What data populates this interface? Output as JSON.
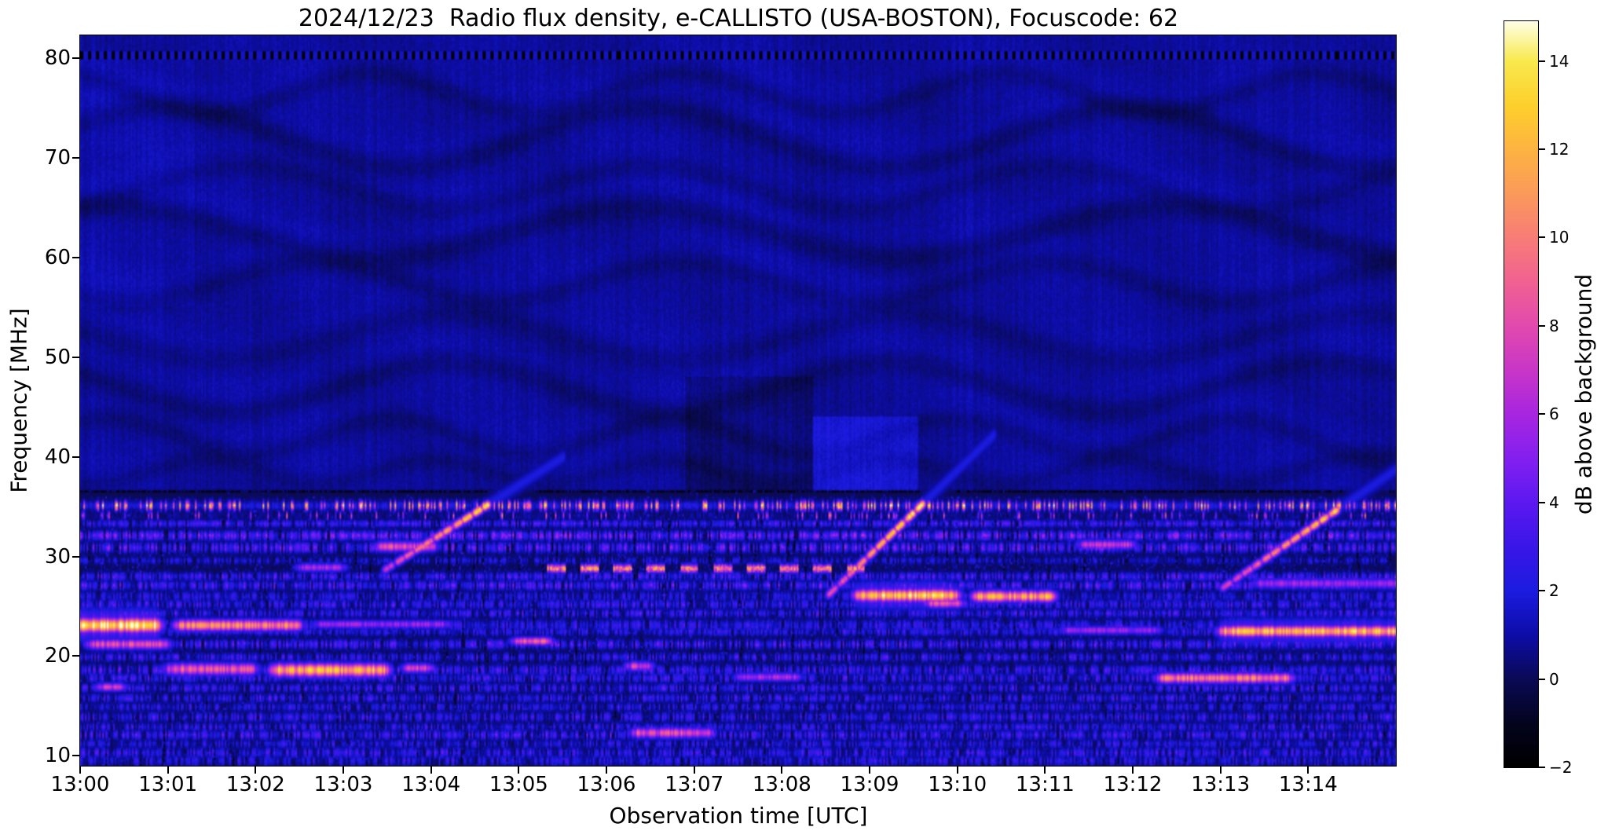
{
  "figure": {
    "title": "2024/12/23  Radio flux density, e-CALLISTO (USA-BOSTON), Focuscode: 62",
    "xlabel": "Observation time [UTC]",
    "ylabel": "Frequency [MHz]",
    "colorbar_label": "dB above background"
  },
  "chart_data": {
    "type": "heatmap",
    "title": "2024/12/23  Radio flux density, e-CALLISTO (USA-BOSTON), Focuscode: 62",
    "xlabel": "Observation time [UTC]",
    "ylabel": "Frequency [MHz]",
    "meta": {
      "date": "2024/12/23",
      "instrument": "e-CALLISTO",
      "station": "USA-BOSTON",
      "focuscode": "62"
    },
    "x_tick_minutes": [
      0,
      1,
      2,
      3,
      4,
      5,
      6,
      7,
      8,
      9,
      10,
      11,
      12,
      13,
      14
    ],
    "x_tick_labels": [
      "13:00",
      "13:01",
      "13:02",
      "13:03",
      "13:04",
      "13:05",
      "13:06",
      "13:07",
      "13:08",
      "13:09",
      "13:10",
      "13:11",
      "13:12",
      "13:13",
      "13:14"
    ],
    "time_extent_minutes": [
      0,
      15
    ],
    "y_tick_values": [
      80,
      70,
      60,
      50,
      40,
      30,
      20,
      10
    ],
    "y_tick_labels": [
      "80",
      "70",
      "60",
      "50",
      "40",
      "30",
      "20",
      "10"
    ],
    "y_range": [
      10,
      80
    ],
    "freq_extent": [
      9.0,
      82.3
    ],
    "grid": false,
    "colorbar": {
      "label": "dB above background",
      "vmin": -2.0,
      "vmax": 14.9,
      "tick_values": [
        14,
        12,
        10,
        8,
        6,
        4,
        2,
        0,
        -2
      ],
      "tick_labels": [
        "14",
        "12",
        "10",
        "8",
        "6",
        "4",
        "2",
        "0",
        "−2"
      ],
      "stops": [
        [
          -2.0,
          "#000000"
        ],
        [
          -1.0,
          "#04041f"
        ],
        [
          0.0,
          "#0a0a55"
        ],
        [
          1.0,
          "#0d0da8"
        ],
        [
          2.0,
          "#1c1ce0"
        ],
        [
          3.0,
          "#3a16e8"
        ],
        [
          4.0,
          "#5c19f0"
        ],
        [
          5.0,
          "#8420f0"
        ],
        [
          6.0,
          "#a826e0"
        ],
        [
          7.0,
          "#c936c8"
        ],
        [
          8.0,
          "#e24aae"
        ],
        [
          9.0,
          "#f16292"
        ],
        [
          10.0,
          "#f87d78"
        ],
        [
          11.0,
          "#fb9a5b"
        ],
        [
          12.0,
          "#fdb441"
        ],
        [
          13.0,
          "#fdd02c"
        ],
        [
          14.0,
          "#f9e94e"
        ],
        [
          14.9,
          "#ffffe6"
        ]
      ]
    },
    "background_level_db": 0.85,
    "features": {
      "top_marker_line": {
        "freq": 80.25,
        "dash_period_min": 0.09,
        "dash_duty_black": 0.4,
        "low_db": -2.0,
        "high_db": 1.5
      },
      "boundary_line": {
        "freq": 36.35,
        "depth_db": 1.3,
        "half_width_mhz": 0.28
      },
      "ionospheric_waves": [
        {
          "f": 76.5,
          "amp": 2.0,
          "period": 3.6,
          "phase": 2.1,
          "depth": 0.4,
          "hw": 1.0
        },
        {
          "f": 72.0,
          "amp": 3.0,
          "period": 5.5,
          "phase": 0.5,
          "depth": 0.5,
          "hw": 1.2
        },
        {
          "f": 67.0,
          "amp": 2.2,
          "period": 4.6,
          "phase": 5.3,
          "depth": 0.35,
          "hw": 1.1
        },
        {
          "f": 62.5,
          "amp": 2.6,
          "period": 6.0,
          "phase": 1.2,
          "depth": 0.55,
          "hw": 1.3
        },
        {
          "f": 57.5,
          "amp": 2.0,
          "period": 4.2,
          "phase": 3.9,
          "depth": 0.4,
          "hw": 1.1
        },
        {
          "f": 52.0,
          "amp": 2.3,
          "period": 5.2,
          "phase": 2.8,
          "depth": 0.35,
          "hw": 1.2
        },
        {
          "f": 47.0,
          "amp": 2.5,
          "period": 5.0,
          "phase": 2.6,
          "depth": 0.45,
          "hw": 1.2
        },
        {
          "f": 42.0,
          "amp": 1.8,
          "period": 3.2,
          "phase": 0.9,
          "depth": 0.4,
          "hw": 1.0
        },
        {
          "f": 38.5,
          "amp": 1.2,
          "period": 2.6,
          "phase": 4.4,
          "depth": 0.35,
          "hw": 0.9
        }
      ],
      "shading_regions": [
        {
          "t0": 6.9,
          "t1": 8.35,
          "f0": 35.5,
          "f1": 48.0,
          "dv": -0.5
        },
        {
          "t0": 8.35,
          "t1": 9.55,
          "f0": 35.5,
          "f1": 44.0,
          "dv": 0.9
        },
        {
          "t0": 0.0,
          "t1": 1.3,
          "f0": 55.0,
          "f1": 80.0,
          "dv": 0.2
        }
      ],
      "rfi_bands": [
        {
          "f": 35.1,
          "w": 0.45,
          "t0": 0,
          "t1": 15,
          "style": "spotty",
          "p": 0.3,
          "hi": 10.5,
          "base": 2.0
        },
        {
          "f": 34.1,
          "w": 0.4,
          "t0": 0,
          "t1": 15,
          "style": "spotty",
          "p": 0.12,
          "hi": 7.0,
          "base": 0.5
        },
        {
          "f": 33.3,
          "w": 0.35,
          "t0": 0,
          "t1": 15,
          "style": "noisy",
          "base": 2.2,
          "var": 1.5
        },
        {
          "f": 32.1,
          "w": 0.45,
          "t0": 0,
          "t1": 15,
          "style": "noisy",
          "base": 2.8,
          "var": 2.2
        },
        {
          "f": 30.9,
          "w": 0.5,
          "t0": 0,
          "t1": 15,
          "style": "noisy",
          "base": 2.2,
          "var": 2.2
        },
        {
          "f": 29.6,
          "w": 0.35,
          "t0": 0,
          "t1": 15,
          "style": "noisy",
          "base": 0.8,
          "var": 1.5
        },
        {
          "f": 28.8,
          "w": 0.4,
          "t0": 5.2,
          "t1": 9.1,
          "style": "dashed",
          "period": 0.38,
          "duty": 0.55,
          "base": 8.0,
          "var": 4.0
        },
        {
          "f": 28.0,
          "w": 0.4,
          "t0": 0,
          "t1": 15,
          "style": "noisy",
          "base": 1.8,
          "var": 1.8
        },
        {
          "f": 27.1,
          "w": 0.45,
          "t0": 0,
          "t1": 15,
          "style": "noisy",
          "base": 2.0,
          "var": 2.0
        },
        {
          "f": 26.0,
          "w": 0.5,
          "t0": 0,
          "t1": 15,
          "style": "noisy",
          "base": 1.2,
          "var": 1.5
        },
        {
          "f": 25.2,
          "w": 0.45,
          "t0": 0,
          "t1": 15,
          "style": "noisy",
          "base": 1.5,
          "var": 1.8
        },
        {
          "f": 24.3,
          "w": 0.4,
          "t0": 0,
          "t1": 15,
          "style": "noisy",
          "base": 1.6,
          "var": 1.8
        },
        {
          "f": 23.1,
          "w": 0.55,
          "t0": 0,
          "t1": 15,
          "style": "noisy",
          "base": 1.5,
          "var": 1.5
        },
        {
          "f": 22.45,
          "w": 0.4,
          "t0": 0,
          "t1": 15,
          "style": "noisy",
          "base": 1.4,
          "var": 1.5
        },
        {
          "f": 21.2,
          "w": 0.45,
          "t0": 0,
          "t1": 15,
          "style": "noisy",
          "base": 1.8,
          "var": 2.0
        },
        {
          "f": 19.9,
          "w": 0.4,
          "t0": 0,
          "t1": 15,
          "style": "noisy",
          "base": 1.5,
          "var": 1.8
        },
        {
          "f": 18.6,
          "w": 0.5,
          "t0": 0,
          "t1": 15,
          "style": "noisy",
          "base": 1.6,
          "var": 1.8
        },
        {
          "f": 17.8,
          "w": 0.45,
          "t0": 0,
          "t1": 15,
          "style": "noisy",
          "base": 1.5,
          "var": 1.8
        },
        {
          "f": 16.8,
          "w": 0.4,
          "t0": 0,
          "t1": 15,
          "style": "noisy",
          "base": 1.6,
          "var": 1.8
        },
        {
          "f": 15.8,
          "w": 0.4,
          "t0": 0,
          "t1": 15,
          "style": "noisy",
          "base": 1.5,
          "var": 1.8
        },
        {
          "f": 14.9,
          "w": 0.4,
          "t0": 0,
          "t1": 15,
          "style": "noisy",
          "base": 1.3,
          "var": 1.6
        },
        {
          "f": 13.9,
          "w": 0.45,
          "t0": 0,
          "t1": 15,
          "style": "noisy",
          "base": 1.4,
          "var": 1.8
        },
        {
          "f": 12.9,
          "w": 0.4,
          "t0": 0,
          "t1": 15,
          "style": "noisy",
          "base": 1.3,
          "var": 1.7
        },
        {
          "f": 12.1,
          "w": 0.45,
          "t0": 0,
          "t1": 15,
          "style": "noisy",
          "base": 1.6,
          "var": 2.0
        },
        {
          "f": 11.2,
          "w": 0.4,
          "t0": 0,
          "t1": 15,
          "style": "noisy",
          "base": 1.2,
          "var": 1.6
        },
        {
          "f": 10.3,
          "w": 0.5,
          "t0": 0,
          "t1": 15,
          "style": "noisy",
          "base": 1.4,
          "var": 1.8
        },
        {
          "f": 9.5,
          "w": 0.5,
          "t0": 0,
          "t1": 15,
          "style": "noisy",
          "base": 1.2,
          "var": 1.6
        }
      ],
      "emission_blobs": [
        {
          "f": 23.1,
          "fw": 0.7,
          "t0": -0.2,
          "t1": 1.0,
          "peak": 15.0
        },
        {
          "f": 23.1,
          "fw": 0.55,
          "t0": 1.0,
          "t1": 2.6,
          "peak": 11.0
        },
        {
          "f": 23.2,
          "fw": 0.4,
          "t0": 2.6,
          "t1": 4.3,
          "peak": 6.0
        },
        {
          "f": 21.2,
          "fw": 0.5,
          "t0": 0.0,
          "t1": 1.1,
          "peak": 8.5
        },
        {
          "f": 16.9,
          "fw": 0.4,
          "t0": 0.1,
          "t1": 0.6,
          "peak": 7.5
        },
        {
          "f": 18.7,
          "fw": 0.6,
          "t0": 0.9,
          "t1": 2.1,
          "peak": 9.0
        },
        {
          "f": 18.6,
          "fw": 0.65,
          "t0": 2.1,
          "t1": 3.6,
          "peak": 12.5
        },
        {
          "f": 18.8,
          "fw": 0.45,
          "t0": 3.6,
          "t1": 4.1,
          "peak": 8.0
        },
        {
          "f": 28.9,
          "fw": 0.4,
          "t0": 2.4,
          "t1": 3.1,
          "peak": 6.5
        },
        {
          "f": 31.0,
          "fw": 0.5,
          "t0": 3.3,
          "t1": 4.15,
          "peak": 8.5
        },
        {
          "f": 21.5,
          "fw": 0.4,
          "t0": 4.85,
          "t1": 5.45,
          "peak": 9.5
        },
        {
          "f": 19.0,
          "fw": 0.45,
          "t0": 6.15,
          "t1": 6.6,
          "peak": 8.0
        },
        {
          "f": 12.3,
          "fw": 0.5,
          "t0": 6.2,
          "t1": 7.3,
          "peak": 8.5
        },
        {
          "f": 17.9,
          "fw": 0.4,
          "t0": 7.4,
          "t1": 8.3,
          "peak": 6.5
        },
        {
          "f": 26.1,
          "fw": 0.6,
          "t0": 8.75,
          "t1": 10.1,
          "peak": 13.5
        },
        {
          "f": 26.0,
          "fw": 0.55,
          "t0": 10.1,
          "t1": 11.2,
          "peak": 12.0
        },
        {
          "f": 25.3,
          "fw": 0.45,
          "t0": 9.55,
          "t1": 10.15,
          "peak": 8.5
        },
        {
          "f": 31.2,
          "fw": 0.45,
          "t0": 11.3,
          "t1": 12.1,
          "peak": 7.5
        },
        {
          "f": 22.6,
          "fw": 0.4,
          "t0": 11.1,
          "t1": 12.4,
          "peak": 6.0
        },
        {
          "f": 17.8,
          "fw": 0.5,
          "t0": 12.2,
          "t1": 13.9,
          "peak": 10.5
        },
        {
          "f": 22.5,
          "fw": 0.55,
          "t0": 12.9,
          "t1": 15.2,
          "peak": 13.0
        },
        {
          "f": 27.3,
          "fw": 0.5,
          "t0": 13.3,
          "t1": 15.2,
          "peak": 6.0
        }
      ],
      "drifting_bursts": [
        {
          "t0": 3.5,
          "f0": 28.8,
          "t1": 4.65,
          "f1": 35.2,
          "peak": 12.0,
          "dash": 0.11,
          "duty": 0.62
        },
        {
          "t0": 8.55,
          "f0": 26.3,
          "t1": 9.62,
          "f1": 35.4,
          "peak": 13.0,
          "dash": 0.11,
          "duty": 0.62
        },
        {
          "t0": 13.05,
          "f0": 27.0,
          "t1": 14.35,
          "f1": 34.8,
          "peak": 12.0,
          "dash": 0.11,
          "duty": 0.62
        }
      ]
    }
  }
}
